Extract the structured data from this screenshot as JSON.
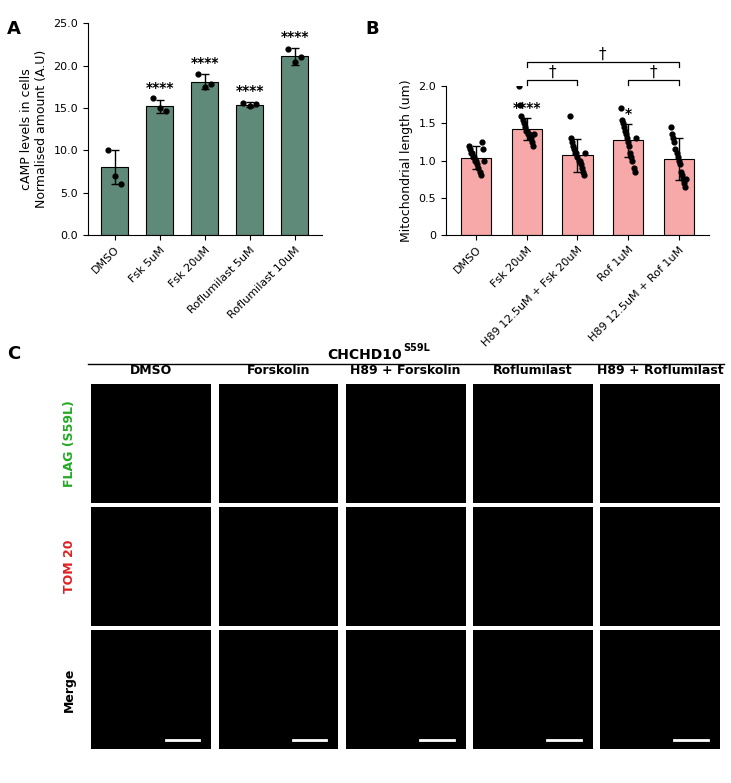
{
  "chart_data": [
    {
      "type": "bar",
      "panel_label": "A",
      "y_label": "cAMP levels in cells\nNormalised amount (A.U)",
      "categories": [
        "DMSO",
        "Fsk 5uM",
        "Fsk 20uM",
        "Roflumilast 5uM",
        "Roflumilast 10uM"
      ],
      "values": [
        8.0,
        15.2,
        18.1,
        15.4,
        21.1
      ],
      "errors": [
        2.0,
        0.8,
        0.9,
        0.3,
        1.0
      ],
      "points": [
        [
          10.0,
          7.0,
          6.0
        ],
        [
          16.2,
          15.0,
          14.6
        ],
        [
          19.0,
          17.5,
          17.9
        ],
        [
          15.6,
          15.2,
          15.5
        ],
        [
          22.0,
          20.5,
          21.0
        ]
      ],
      "significance": [
        null,
        "****",
        "****",
        "****",
        "****"
      ],
      "color": "#5f8a7a",
      "ylim": [
        0,
        25
      ],
      "yticks": [
        {
          "value": 0,
          "label": "0.0"
        },
        {
          "value": 5,
          "label": "5.0"
        },
        {
          "value": 10,
          "label": "10.0"
        },
        {
          "value": 15,
          "label": "15.0"
        },
        {
          "value": 20,
          "label": "20.0"
        },
        {
          "value": 25,
          "label": "25.0"
        }
      ]
    },
    {
      "type": "bar",
      "panel_label": "B",
      "y_label": "Mitochondrial length (um)",
      "categories": [
        "DMSO",
        "Fsk 20uM",
        "H89 12.5uM + Fsk 20uM",
        "Rof 1uM",
        "H89 12.5uM + Rof 1uM"
      ],
      "values": [
        1.04,
        1.42,
        1.07,
        1.27,
        1.02
      ],
      "errors": [
        0.15,
        0.15,
        0.22,
        0.22,
        0.28
      ],
      "points": [
        [
          1.2,
          1.15,
          1.1,
          1.1,
          1.05,
          1.05,
          1.0,
          1.0,
          0.95,
          0.9,
          0.85,
          0.8,
          1.25,
          1.15,
          1.0
        ],
        [
          2.0,
          1.75,
          1.6,
          1.55,
          1.5,
          1.45,
          1.4,
          1.4,
          1.35,
          1.35,
          1.3,
          1.3,
          1.25,
          1.2,
          1.35
        ],
        [
          1.6,
          1.3,
          1.25,
          1.2,
          1.15,
          1.1,
          1.1,
          1.05,
          1.0,
          1.0,
          0.95,
          0.9,
          0.85,
          0.8,
          1.1
        ],
        [
          1.7,
          1.55,
          1.5,
          1.45,
          1.4,
          1.35,
          1.3,
          1.25,
          1.2,
          1.1,
          1.05,
          1.0,
          0.9,
          0.85,
          1.3
        ],
        [
          1.45,
          1.35,
          1.3,
          1.25,
          1.15,
          1.1,
          1.05,
          1.0,
          0.95,
          0.85,
          0.8,
          0.75,
          0.7,
          0.65,
          0.75
        ]
      ],
      "significance": [
        null,
        "****",
        null,
        "*",
        null
      ],
      "brackets": [
        {
          "from": "Fsk 20uM",
          "to": "H89 12.5uM + Fsk 20uM",
          "label": "†"
        },
        {
          "from": "Rof 1uM",
          "to": "H89 12.5uM + Rof 1uM",
          "label": "†"
        },
        {
          "from": "Fsk 20uM",
          "to": "H89 12.5uM + Rof 1uM",
          "label": "†"
        }
      ],
      "color": "#f7a8a8",
      "ylim": [
        0,
        2.0
      ],
      "yticks": [
        0,
        0.5,
        1.0,
        1.5,
        2.0
      ]
    }
  ],
  "image_panel": {
    "panel_label": "C",
    "title": "CHCHD10",
    "title_superscript": "S59L",
    "columns": [
      "DMSO",
      "Forskolin",
      "H89 + Forskolin",
      "Roflumilast",
      "H89 + Roflumilast"
    ],
    "rows": [
      {
        "label": "FLAG (S59L)",
        "color": "#22aa22"
      },
      {
        "label": "TOM 20",
        "color": "#dd2222"
      },
      {
        "label": "Merge",
        "color": "#000000"
      }
    ]
  }
}
